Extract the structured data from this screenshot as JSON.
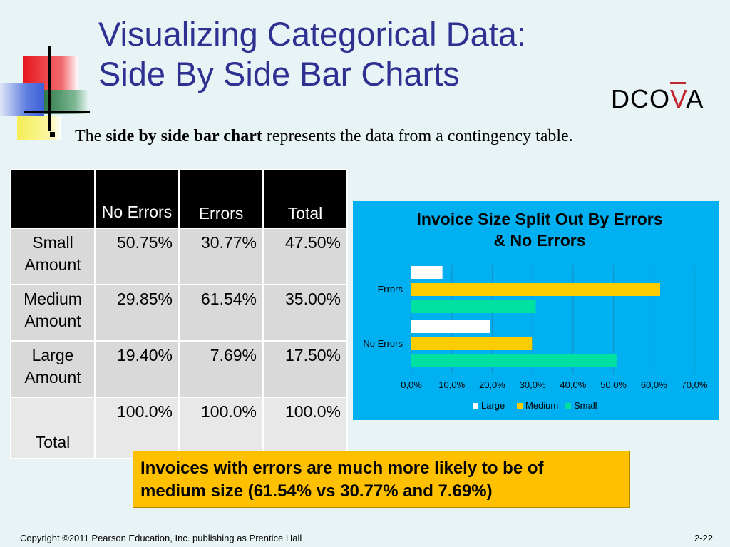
{
  "slide": {
    "title_line1": "Visualizing Categorical Data:",
    "title_line2": "Side By Side Bar Charts",
    "dcova_prefix": "DCO",
    "dcova_highlight": "V",
    "dcova_suffix": "A",
    "subtitle_pre": "The ",
    "subtitle_bold": "side by side bar chart",
    "subtitle_post": " represents the data from a contingency table.",
    "callout_line1": "Invoices with errors are much more likely to be of",
    "callout_line2": "medium size (61.54% vs 30.77% and 7.69%)",
    "footer": "Copyright ©2011 Pearson Education, Inc. publishing as Prentice Hall",
    "page_number": "2-22"
  },
  "table": {
    "headers": [
      "",
      "No Errors",
      "Errors",
      "Total"
    ],
    "rows": [
      {
        "label": "Small Amount",
        "cells": [
          "50.75%",
          "30.77%",
          "47.50%"
        ]
      },
      {
        "label": "Medium Amount",
        "cells": [
          "29.85%",
          "61.54%",
          "35.00%"
        ]
      },
      {
        "label": "Large Amount",
        "cells": [
          "19.40%",
          "7.69%",
          "17.50%"
        ]
      },
      {
        "label": "Total",
        "cells": [
          "100.0%",
          "100.0%",
          "100.0%"
        ]
      }
    ]
  },
  "colors": {
    "title": "#2e3192",
    "chart_background": "#00b0f0",
    "large": "#ffffff",
    "medium": "#ffcc00",
    "small": "#00e0a0",
    "callout": "#ffc000"
  },
  "chart_data": {
    "type": "bar",
    "orientation": "horizontal",
    "title": "Invoice Size Split Out By Errors & No Errors",
    "categories": [
      "Errors",
      "No Errors"
    ],
    "series": [
      {
        "name": "Large",
        "values": [
          7.69,
          19.4
        ]
      },
      {
        "name": "Medium",
        "values": [
          61.54,
          29.85
        ]
      },
      {
        "name": "Small",
        "values": [
          30.77,
          50.75
        ]
      }
    ],
    "xlim": [
      0,
      70
    ],
    "xticks": [
      "0,0%",
      "10,0%",
      "20,0%",
      "30,0%",
      "40,0%",
      "50,0%",
      "60,0%",
      "70,0%"
    ],
    "grid": true,
    "legend_position": "bottom"
  }
}
